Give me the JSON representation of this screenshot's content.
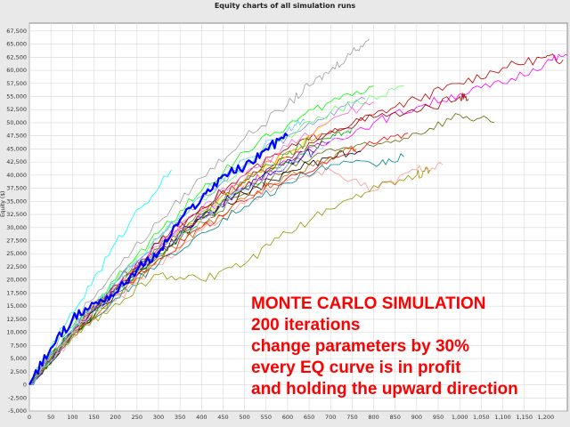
{
  "chart_data": {
    "type": "line",
    "title": "Equity charts of all simulation runs",
    "ylabel": "Equity ($)",
    "xlabel": "",
    "xlim": [
      0,
      1250
    ],
    "ylim": [
      -5000,
      69000
    ],
    "grid": true,
    "x_ticks": [
      "0",
      "50",
      "100",
      "150",
      "200",
      "250",
      "300",
      "350",
      "400",
      "450",
      "500",
      "550",
      "600",
      "650",
      "700",
      "750",
      "800",
      "850",
      "900",
      "950",
      "1,000",
      "1,050",
      "1,100",
      "1,150",
      "1,200"
    ],
    "x_tick_values": [
      0,
      50,
      100,
      150,
      200,
      250,
      300,
      350,
      400,
      450,
      500,
      550,
      600,
      650,
      700,
      750,
      800,
      850,
      900,
      950,
      1000,
      1050,
      1100,
      1150,
      1200
    ],
    "y_ticks": [
      "-5,000",
      "-2,500",
      "0",
      "2,500",
      "5,000",
      "7,500",
      "10,000",
      "12,500",
      "15,000",
      "17,500",
      "20,000",
      "22,500",
      "25,000",
      "27,500",
      "30,000",
      "32,500",
      "35,000",
      "37,500",
      "40,000",
      "42,500",
      "45,000",
      "47,500",
      "50,000",
      "52,500",
      "55,000",
      "57,500",
      "60,000",
      "62,500",
      "65,000",
      "67,500"
    ],
    "y_tick_values": [
      -5000,
      -2500,
      0,
      2500,
      5000,
      7500,
      10000,
      12500,
      15000,
      17500,
      20000,
      22500,
      25000,
      27500,
      30000,
      32500,
      35000,
      37500,
      40000,
      42500,
      45000,
      47500,
      50000,
      52500,
      55000,
      57500,
      60000,
      62500,
      65000,
      67500
    ],
    "series": [
      {
        "color": "#bb0000",
        "x": [
          0,
          100,
          200,
          300,
          400,
          500,
          600,
          700,
          800,
          900,
          1000,
          1100,
          1200,
          1240
        ],
        "y": [
          0,
          10500,
          19500,
          27000,
          33500,
          39000,
          43500,
          48000,
          51500,
          54500,
          57500,
          60500,
          62500,
          62000
        ]
      },
      {
        "color": "#ff00ff",
        "x": [
          0,
          100,
          200,
          300,
          400,
          500,
          600,
          700,
          800,
          900,
          1000,
          1100,
          1200,
          1250
        ],
        "y": [
          0,
          10000,
          18500,
          26000,
          32500,
          38000,
          42500,
          46500,
          50000,
          53000,
          55500,
          57500,
          61500,
          63000
        ]
      },
      {
        "color": "#a0a0a0",
        "x": [
          0,
          100,
          200,
          300,
          400,
          500,
          600,
          650,
          700,
          750,
          790
        ],
        "y": [
          0,
          12000,
          22000,
          31000,
          39500,
          47000,
          53500,
          57000,
          60000,
          63500,
          66000
        ]
      },
      {
        "color": "#666600",
        "x": [
          0,
          100,
          200,
          300,
          400,
          500,
          600,
          700,
          800,
          900,
          1000,
          1080
        ],
        "y": [
          0,
          9500,
          17500,
          24500,
          31000,
          36500,
          41000,
          45000,
          45500,
          48000,
          51500,
          50000
        ]
      },
      {
        "color": "#990000",
        "x": [
          0,
          100,
          200,
          300,
          400,
          500,
          600,
          700,
          800,
          900,
          1000,
          1020
        ],
        "y": [
          0,
          10500,
          19000,
          27000,
          34000,
          40000,
          45000,
          48500,
          51000,
          52000,
          55000,
          54500
        ]
      },
      {
        "color": "#00ffff",
        "x": [
          0,
          80,
          160,
          240,
          330
        ],
        "y": [
          0,
          11000,
          21500,
          32000,
          41000
        ]
      },
      {
        "color": "#00ff00",
        "x": [
          0,
          100,
          200,
          300,
          400,
          500,
          600,
          700,
          800
        ],
        "y": [
          0,
          11000,
          20000,
          29000,
          37000,
          44500,
          49500,
          54000,
          57000
        ]
      },
      {
        "color": "#ff0000",
        "x": [
          0,
          100,
          200,
          300,
          400,
          500,
          600,
          700,
          800,
          880
        ],
        "y": [
          0,
          10000,
          17500,
          24000,
          30000,
          35000,
          39500,
          43000,
          46000,
          48000
        ]
      },
      {
        "color": "#ff9999",
        "x": [
          0,
          100,
          200,
          300,
          400,
          500,
          600,
          700,
          800,
          900,
          960
        ],
        "y": [
          0,
          9000,
          16000,
          23000,
          29500,
          34500,
          39000,
          41000,
          37000,
          41000,
          42000
        ]
      },
      {
        "color": "#000000",
        "x": [
          0,
          100,
          200,
          300,
          400,
          500,
          600,
          700,
          770
        ],
        "y": [
          0,
          9500,
          17500,
          25000,
          31500,
          36500,
          40500,
          43500,
          44500
        ]
      },
      {
        "color": "#8888ff",
        "x": [
          0,
          100,
          200,
          300,
          400,
          500,
          600,
          700,
          780
        ],
        "y": [
          0,
          10500,
          19500,
          28000,
          35500,
          42000,
          47500,
          52000,
          54500
        ]
      },
      {
        "color": "#ffff00",
        "x": [
          0,
          100,
          200,
          300,
          400,
          500,
          600,
          700
        ],
        "y": [
          0,
          10000,
          18000,
          25500,
          32000,
          38000,
          44000,
          50000
        ]
      },
      {
        "color": "#ff8800",
        "x": [
          0,
          100,
          200,
          300,
          400,
          500,
          600,
          680
        ],
        "y": [
          0,
          10000,
          18500,
          26000,
          33000,
          39000,
          44500,
          48000
        ]
      },
      {
        "color": "#008888",
        "x": [
          0,
          100,
          200,
          300,
          400,
          500,
          600,
          700,
          800,
          870
        ],
        "y": [
          0,
          9500,
          16500,
          23000,
          29000,
          34000,
          38500,
          42000,
          42000,
          43500
        ]
      },
      {
        "color": "#999900",
        "x": [
          0,
          100,
          200,
          300,
          400,
          500,
          600,
          700,
          800,
          900,
          930
        ],
        "y": [
          0,
          9000,
          15500,
          21000,
          20000,
          23000,
          29000,
          33500,
          38000,
          40000,
          41000
        ]
      },
      {
        "color": "#880088",
        "x": [
          0,
          100,
          200,
          300,
          400,
          500,
          600,
          700
        ],
        "y": [
          0,
          10000,
          18000,
          25500,
          32000,
          37500,
          43000,
          46500
        ]
      },
      {
        "color": "#66ff66",
        "x": [
          0,
          100,
          200,
          300,
          400,
          500,
          600,
          700,
          800,
          870
        ],
        "y": [
          0,
          10500,
          19500,
          28000,
          35500,
          42000,
          47500,
          52000,
          55000,
          57000
        ]
      },
      {
        "color": "#00aa00",
        "x": [
          0,
          100,
          200,
          300,
          400,
          500,
          600,
          700,
          750
        ],
        "y": [
          0,
          9500,
          17500,
          25000,
          31500,
          37500,
          42500,
          47000,
          49000
        ]
      },
      {
        "color": "#ff66cc",
        "x": [
          0,
          100,
          200,
          300,
          400,
          500,
          600,
          700,
          800
        ],
        "y": [
          0,
          10000,
          18500,
          26500,
          33500,
          40000,
          45500,
          50500,
          54000
        ]
      },
      {
        "color": "#0000aa",
        "x": [
          0,
          100,
          200,
          300,
          400,
          500,
          600,
          660
        ],
        "y": [
          0,
          10000,
          18000,
          25500,
          32000,
          37500,
          42000,
          44500
        ]
      },
      {
        "color": "#66ccff",
        "x": [
          0,
          100,
          200,
          300,
          400,
          500,
          600,
          640
        ],
        "y": [
          0,
          10500,
          19500,
          28000,
          36000,
          43000,
          48500,
          50500
        ]
      },
      {
        "color": "#cc6600",
        "x": [
          0,
          100,
          200,
          300,
          400,
          500,
          600,
          700,
          760
        ],
        "y": [
          0,
          9500,
          17000,
          24000,
          30000,
          35500,
          40000,
          43500,
          45000
        ]
      },
      {
        "color": "#339933",
        "x": [
          0,
          100,
          200,
          300,
          400,
          500,
          600,
          650
        ],
        "y": [
          0,
          10000,
          18500,
          26000,
          32500,
          38500,
          44000,
          46500
        ]
      },
      {
        "color": "#ccccff",
        "x": [
          0,
          100,
          200,
          300,
          400,
          500,
          600,
          700,
          760
        ],
        "y": [
          0,
          10000,
          18000,
          25000,
          31500,
          37000,
          42000,
          46500,
          48500
        ]
      },
      {
        "color": "#0000ff",
        "x": [
          0,
          50,
          100,
          150,
          200,
          250,
          300,
          350,
          400,
          450,
          500,
          550,
          600
        ],
        "y": [
          0,
          7000,
          12500,
          15500,
          17500,
          22000,
          25000,
          31500,
          35500,
          40000,
          41500,
          45000,
          47500
        ]
      }
    ]
  }
}
